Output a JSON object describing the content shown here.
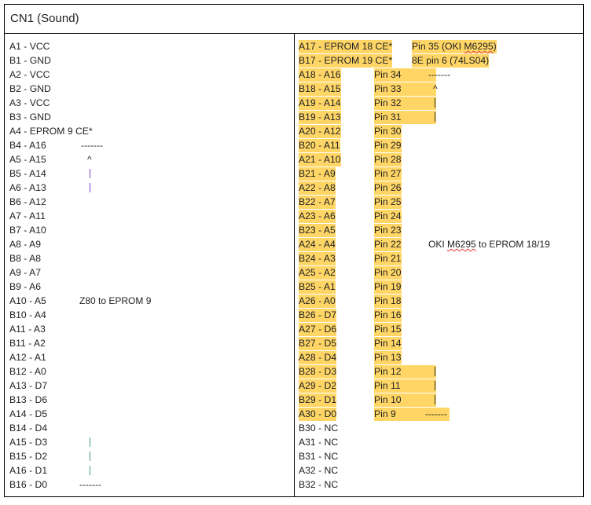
{
  "title": "CN1 (Sound)",
  "left_rows": [
    "A1 - VCC",
    "B1 - GND",
    "A2 - VCC",
    "B2 - GND",
    "A3 - VCC",
    "B3 - GND",
    "A4 - EPROM 9 CE*",
    "B4 - A16",
    "A5 - A15",
    "B5 - A14",
    "A6 - A13",
    "B6 - A12",
    "A7 - A11",
    "B7 - A10",
    "A8 - A9",
    "B8 - A8",
    "A9 - A7",
    "B9 - A6",
    "A10 - A5",
    "B10 - A4",
    "A11 - A3",
    "B11 - A2",
    "A12 - A1",
    "B12 - A0",
    "A13 - D7",
    "B13 - D6",
    "A14 - D5",
    "B14 - D4",
    "A15 - D3",
    "B15 - D2",
    "A16 - D1",
    "B16 - D0"
  ],
  "left_note": "Z80 to EPROM 9",
  "right_top": [
    {
      "pin": "A17 - EPROM 18 CE*",
      "note_pre": "Pin 35 (OKI ",
      "note_underlined": "M6295",
      "note_post": ")"
    },
    {
      "pin": "B17 - EPROM 19 CE*",
      "note_pre": "8E pin 6 (74LS04)",
      "note_underlined": "",
      "note_post": ""
    }
  ],
  "right_rows": [
    {
      "pin": "A18 - A16",
      "oki": "Pin 34"
    },
    {
      "pin": "B18 - A15",
      "oki": "Pin 33"
    },
    {
      "pin": "A19 - A14",
      "oki": "Pin 32"
    },
    {
      "pin": "B19 - A13",
      "oki": "Pin 31"
    },
    {
      "pin": "A20 - A12",
      "oki": "Pin 30"
    },
    {
      "pin": "B20 - A11",
      "oki": "Pin 29"
    },
    {
      "pin": "A21 - A10",
      "oki": "Pin 28"
    },
    {
      "pin": "B21 - A9",
      "oki": "Pin 27"
    },
    {
      "pin": "A22 - A8",
      "oki": "Pin 26"
    },
    {
      "pin": "B22 - A7",
      "oki": "Pin 25"
    },
    {
      "pin": "A23 - A6",
      "oki": "Pin 24"
    },
    {
      "pin": "B23 - A5",
      "oki": "Pin 23"
    },
    {
      "pin": "A24 - A4",
      "oki": "Pin 22"
    },
    {
      "pin": "B24 - A3",
      "oki": "Pin 21"
    },
    {
      "pin": "A25 - A2",
      "oki": "Pin 20"
    },
    {
      "pin": "B25 - A1",
      "oki": "Pin 19"
    },
    {
      "pin": "A26 - A0",
      "oki": "Pin 18"
    },
    {
      "pin": "B26 - D7",
      "oki": "Pin 16"
    },
    {
      "pin": "A27 - D6",
      "oki": "Pin 15"
    },
    {
      "pin": "B27 - D5",
      "oki": "Pin 14"
    },
    {
      "pin": "A28 - D4",
      "oki": "Pin 13"
    },
    {
      "pin": "B28 - D3",
      "oki": "Pin 12"
    },
    {
      "pin": "A29 - D2",
      "oki": "Pin 11"
    },
    {
      "pin": "B29 - D1",
      "oki": "Pin 10"
    },
    {
      "pin": "A30 - D0",
      "oki": "Pin 9"
    }
  ],
  "right_bottom": [
    "B30 - NC",
    "A31 - NC",
    "B31 - NC",
    "A32 - NC",
    "B32 - NC"
  ],
  "right_note_pre": "OKI ",
  "right_note_underlined": "M6295",
  "right_note_post": " to EPROM 18/19",
  "markers": {
    "dash": "-------",
    "caret": "^"
  },
  "colors": {
    "highlight": "#ffd666",
    "bracket_purple": "#7b3fbf",
    "bracket_teal": "#4a9a8a",
    "spellcheck": "#e53935"
  }
}
